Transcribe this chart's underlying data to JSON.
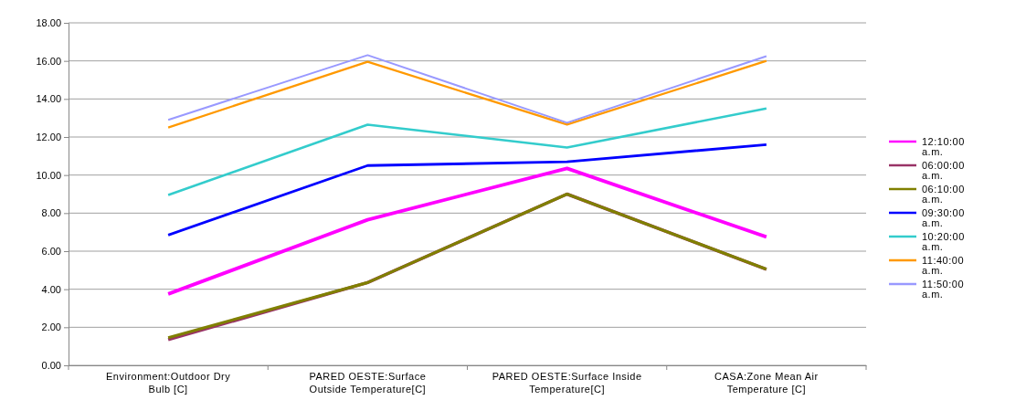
{
  "chart_data": {
    "type": "line",
    "categories": [
      "Environment:Outdoor Dry Bulb [C]",
      "PARED OESTE:Surface Outside Temperature[C]",
      "PARED OESTE:Surface Inside Temperature[C]",
      "CASA:Zone Mean Air Temperature [C]"
    ],
    "ylim": [
      0,
      18
    ],
    "yticks": [
      {
        "value": 0,
        "label": "0.00"
      },
      {
        "value": 2,
        "label": "2.00"
      },
      {
        "value": 4,
        "label": "4.00"
      },
      {
        "value": 6,
        "label": "6.00"
      },
      {
        "value": 8,
        "label": "8.00"
      },
      {
        "value": 10,
        "label": "10.00"
      },
      {
        "value": 12,
        "label": "12.00"
      },
      {
        "value": 14,
        "label": "14.00"
      },
      {
        "value": 16,
        "label": "16.00"
      },
      {
        "value": 18,
        "label": "18.00"
      }
    ],
    "grid": "y",
    "legend": "right",
    "marker": "none",
    "line_style": "solid",
    "series": [
      {
        "name": "12:10:00 a.m.",
        "color": "#ff00ff",
        "values": [
          3.75,
          7.65,
          10.35,
          6.75
        ]
      },
      {
        "name": "06:00:00 a.m.",
        "color": "#993366",
        "values": [
          1.35,
          4.35,
          9.0,
          5.05
        ]
      },
      {
        "name": "06:10:00 a.m.",
        "color": "#808000",
        "values": [
          1.45,
          4.35,
          9.0,
          5.05
        ]
      },
      {
        "name": "09:30:00 a.m.",
        "color": "#0000ff",
        "values": [
          6.85,
          10.5,
          10.7,
          11.6
        ]
      },
      {
        "name": "10:20:00 a.m.",
        "color": "#33cccc",
        "values": [
          8.95,
          12.65,
          11.45,
          13.5
        ]
      },
      {
        "name": "11:40:00 a.m.",
        "color": "#ff9900",
        "values": [
          12.5,
          15.95,
          12.65,
          16.0
        ]
      },
      {
        "name": "11:50:00 a.m.",
        "color": "#9999ff",
        "values": [
          12.9,
          16.3,
          12.75,
          16.25
        ]
      }
    ]
  }
}
